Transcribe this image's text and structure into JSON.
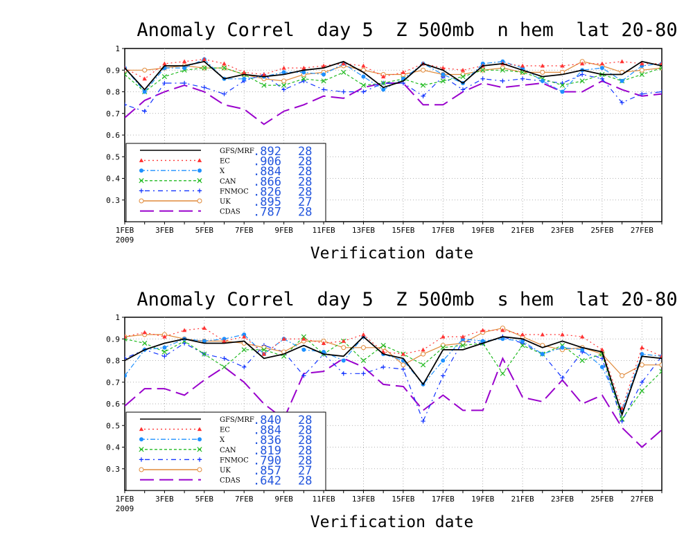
{
  "chart_data": [
    {
      "type": "line",
      "title": "Anomaly Correl  day 5  Z 500mb  n hem  lat 20-80",
      "xlabel": "Verification date",
      "ylabel": "",
      "ylim": [
        0.2,
        1.0
      ],
      "grid": true,
      "yticks": [
        "1",
        "0.9",
        "0.8",
        "0.7",
        "0.6",
        "0.5",
        "0.4",
        "0.3"
      ],
      "xticks": [
        "1FEB",
        "3FEB",
        "5FEB",
        "7FEB",
        "9FEB",
        "11FEB",
        "13FEB",
        "15FEB",
        "17FEB",
        "19FEB",
        "21FEB",
        "23FEB",
        "25FEB",
        "27FEB"
      ],
      "xtick_sub": "2009",
      "x": [
        1,
        2,
        3,
        4,
        5,
        6,
        7,
        8,
        9,
        10,
        11,
        12,
        13,
        14,
        15,
        16,
        17,
        18,
        19,
        20,
        21,
        22,
        23,
        24,
        25,
        26,
        27,
        28
      ],
      "legend_position": "lower-left",
      "series": [
        {
          "name": "GFS/MRF",
          "stat": ".892",
          "count": "28",
          "color": "#000000",
          "dash": "",
          "marker": "none",
          "values": [
            0.91,
            0.81,
            0.92,
            0.92,
            0.94,
            0.86,
            0.88,
            0.87,
            0.88,
            0.9,
            0.91,
            0.94,
            0.89,
            0.82,
            0.85,
            0.93,
            0.9,
            0.84,
            0.92,
            0.93,
            0.9,
            0.87,
            0.88,
            0.9,
            0.88,
            0.88,
            0.94,
            0.92
          ]
        },
        {
          "name": "EC",
          "stat": ".906",
          "count": "28",
          "color": "#ff3333",
          "dash": "2 4",
          "marker": "triangle",
          "values": [
            0.91,
            0.86,
            0.93,
            0.94,
            0.95,
            0.93,
            0.89,
            0.88,
            0.91,
            0.91,
            0.92,
            0.93,
            0.92,
            0.87,
            0.89,
            0.93,
            0.91,
            0.9,
            0.92,
            0.93,
            0.92,
            0.92,
            0.92,
            0.93,
            0.93,
            0.94,
            0.93,
            0.93
          ]
        },
        {
          "name": "X",
          "stat": ".884",
          "count": "28",
          "color": "#1e90ff",
          "dash": "7 3 2 3",
          "marker": "circle",
          "values": [
            0.91,
            0.8,
            0.91,
            0.91,
            0.95,
            0.86,
            0.86,
            0.87,
            0.89,
            0.89,
            0.88,
            0.93,
            0.87,
            0.81,
            0.86,
            0.93,
            0.88,
            0.84,
            0.93,
            0.94,
            0.91,
            0.85,
            0.8,
            0.9,
            0.91,
            0.85,
            0.92,
            0.93
          ]
        },
        {
          "name": "CAN",
          "stat": ".866",
          "count": "28",
          "color": "#22bb22",
          "dash": "4 3",
          "marker": "x",
          "values": [
            0.88,
            0.8,
            0.87,
            0.9,
            0.91,
            0.91,
            0.88,
            0.83,
            0.83,
            0.86,
            0.85,
            0.89,
            0.83,
            0.84,
            0.86,
            0.83,
            0.85,
            0.87,
            0.9,
            0.9,
            0.89,
            0.86,
            0.83,
            0.85,
            0.88,
            0.85,
            0.88,
            0.91
          ]
        },
        {
          "name": "FNMOC",
          "stat": ".826",
          "count": "28",
          "color": "#1133ff",
          "dash": "2 5 7 5",
          "marker": "plus",
          "values": [
            0.74,
            0.71,
            0.84,
            0.84,
            0.82,
            0.79,
            0.85,
            0.88,
            0.81,
            0.85,
            0.81,
            0.8,
            0.8,
            0.84,
            0.84,
            0.78,
            0.87,
            0.81,
            0.86,
            0.85,
            0.86,
            0.85,
            0.84,
            0.88,
            0.86,
            0.75,
            0.79,
            0.8
          ]
        },
        {
          "name": "UK",
          "stat": ".895",
          "count": "27",
          "color": "#e08a3a",
          "dash": "",
          "marker": "opencircle",
          "values": [
            0.9,
            0.9,
            0.91,
            0.92,
            0.91,
            0.91,
            0.88,
            0.86,
            0.85,
            0.88,
            0.89,
            0.92,
            0.9,
            0.88,
            0.88,
            0.9,
            0.88,
            0.88,
            0.9,
            0.91,
            0.89,
            0.89,
            0.89,
            0.94,
            0.92,
            0.89,
            0.9,
            0.91
          ]
        },
        {
          "name": "CDAS",
          "stat": ".787",
          "count": "28",
          "color": "#9900cc",
          "dash": "20 8",
          "marker": "none",
          "values": [
            0.68,
            0.76,
            0.8,
            0.83,
            0.8,
            0.74,
            0.72,
            0.65,
            0.71,
            0.74,
            0.78,
            0.77,
            0.82,
            0.84,
            0.84,
            0.74,
            0.74,
            0.8,
            0.84,
            0.82,
            0.83,
            0.84,
            0.8,
            0.8,
            0.85,
            0.81,
            0.78,
            0.79
          ]
        }
      ]
    },
    {
      "type": "line",
      "title": "Anomaly Correl  day 5  Z 500mb  s hem  lat 20-80",
      "xlabel": "Verification date",
      "ylabel": "",
      "ylim": [
        0.2,
        1.0
      ],
      "grid": true,
      "yticks": [
        "1",
        "0.9",
        "0.8",
        "0.7",
        "0.6",
        "0.5",
        "0.4",
        "0.3"
      ],
      "xticks": [
        "1FEB",
        "3FEB",
        "5FEB",
        "7FEB",
        "9FEB",
        "11FEB",
        "13FEB",
        "15FEB",
        "17FEB",
        "19FEB",
        "21FEB",
        "23FEB",
        "25FEB",
        "27FEB"
      ],
      "xtick_sub": "2009",
      "x": [
        1,
        2,
        3,
        4,
        5,
        6,
        7,
        8,
        9,
        10,
        11,
        12,
        13,
        14,
        15,
        16,
        17,
        18,
        19,
        20,
        21,
        22,
        23,
        24,
        25,
        26,
        27,
        28
      ],
      "legend_position": "lower-left",
      "series": [
        {
          "name": "GFS/MRF",
          "stat": ".840",
          "count": "28",
          "color": "#000000",
          "dash": "",
          "marker": "none",
          "values": [
            0.8,
            0.85,
            0.88,
            0.9,
            0.88,
            0.88,
            0.89,
            0.81,
            0.83,
            0.87,
            0.83,
            0.82,
            0.91,
            0.83,
            0.81,
            0.69,
            0.85,
            0.85,
            0.88,
            0.91,
            0.9,
            0.86,
            0.89,
            0.86,
            0.84,
            0.55,
            0.82,
            0.81
          ]
        },
        {
          "name": "EC",
          "stat": ".884",
          "count": "28",
          "color": "#ff3333",
          "dash": "2 4",
          "marker": "triangle",
          "values": [
            0.91,
            0.93,
            0.91,
            0.94,
            0.95,
            0.89,
            0.91,
            0.83,
            0.9,
            0.9,
            0.88,
            0.89,
            0.92,
            0.84,
            0.83,
            0.85,
            0.91,
            0.91,
            0.94,
            0.94,
            0.92,
            0.92,
            0.92,
            0.91,
            0.85,
            0.58,
            0.86,
            0.82
          ]
        },
        {
          "name": "X",
          "stat": ".836",
          "count": "28",
          "color": "#1e90ff",
          "dash": "7 3 2 3",
          "marker": "circle",
          "values": [
            0.73,
            0.85,
            0.86,
            0.9,
            0.89,
            0.9,
            0.92,
            0.83,
            0.9,
            0.85,
            0.84,
            0.8,
            0.91,
            0.83,
            0.8,
            0.69,
            0.8,
            0.9,
            0.89,
            0.9,
            0.89,
            0.83,
            0.86,
            0.85,
            0.77,
            0.57,
            0.83,
            0.82
          ]
        },
        {
          "name": "CAN",
          "stat": ".819",
          "count": "28",
          "color": "#22bb22",
          "dash": "4 3",
          "marker": "x",
          "values": [
            0.9,
            0.88,
            0.84,
            0.89,
            0.83,
            0.77,
            0.85,
            0.85,
            0.82,
            0.91,
            0.83,
            0.89,
            0.8,
            0.87,
            0.83,
            0.78,
            0.86,
            0.87,
            0.88,
            0.74,
            0.87,
            0.83,
            0.87,
            0.8,
            0.83,
            0.53,
            0.66,
            0.75
          ]
        },
        {
          "name": "FNMOC",
          "stat": ".790",
          "count": "28",
          "color": "#1133ff",
          "dash": "2 5 7 5",
          "marker": "plus",
          "values": [
            0.81,
            0.85,
            0.82,
            0.88,
            0.83,
            0.81,
            0.77,
            0.87,
            0.84,
            0.73,
            0.83,
            0.74,
            0.74,
            0.77,
            0.76,
            0.52,
            0.73,
            0.89,
            0.88,
            0.91,
            0.88,
            0.83,
            0.72,
            0.84,
            0.81,
            0.52,
            0.7,
            0.82
          ]
        },
        {
          "name": "UK",
          "stat": ".857",
          "count": "27",
          "color": "#e08a3a",
          "dash": "",
          "marker": "opencircle",
          "values": [
            0.91,
            0.92,
            0.92,
            0.9,
            0.89,
            0.89,
            0.88,
            0.86,
            0.84,
            0.89,
            0.89,
            0.86,
            0.86,
            0.86,
            0.78,
            0.83,
            0.87,
            0.88,
            0.93,
            0.95,
            0.91,
            0.87,
            0.85,
            0.86,
            0.83,
            0.73,
            0.78,
            0.78
          ]
        },
        {
          "name": "CDAS",
          "stat": ".642",
          "count": "28",
          "color": "#9900cc",
          "dash": "20 8",
          "marker": "none",
          "values": [
            0.59,
            0.67,
            0.67,
            0.64,
            0.71,
            0.77,
            0.7,
            0.6,
            0.53,
            0.74,
            0.75,
            0.81,
            0.77,
            0.69,
            0.68,
            0.57,
            0.64,
            0.57,
            0.57,
            0.81,
            0.63,
            0.61,
            0.71,
            0.6,
            0.64,
            0.49,
            0.4,
            0.48
          ]
        }
      ]
    }
  ]
}
